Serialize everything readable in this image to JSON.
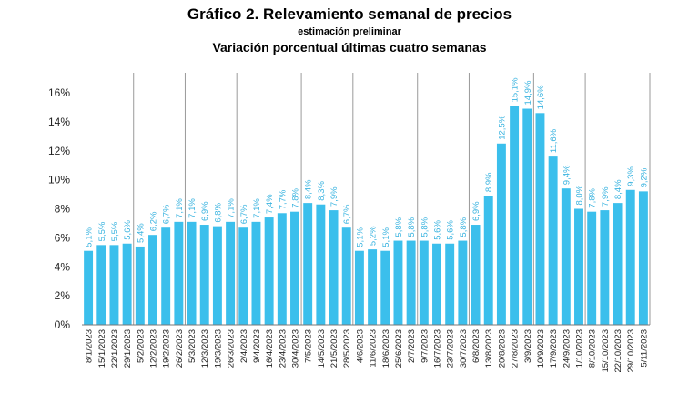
{
  "header": {
    "title": "Gráfico 2. Relevamiento semanal de precios",
    "subtitle": "estimación preliminar",
    "subtitle2": "Variación porcentual últimas cuatro semanas"
  },
  "colors": {
    "bar": "#3bbfec",
    "label": "#3bb4e0",
    "separator": "#9a9a9a",
    "axis": "#777777"
  },
  "chart_data": {
    "type": "bar",
    "title": "Gráfico 2. Relevamiento semanal de precios",
    "subtitle": "Variación porcentual últimas cuatro semanas",
    "ylim": [
      0,
      16
    ],
    "yticks": [
      "0%",
      "2%",
      "4%",
      "6%",
      "8%",
      "10%",
      "12%",
      "14%",
      "16%"
    ],
    "grid": false,
    "categories": [
      "8/1/2023",
      "15/1/2023",
      "22/1/2023",
      "29/1/2023",
      "5/2/2023",
      "12/2/2023",
      "19/2/2023",
      "26/2/2023",
      "5/3/2023",
      "12/3/2023",
      "19/3/2023",
      "26/3/2023",
      "2/4/2023",
      "9/4/2023",
      "16/4/2023",
      "23/4/2023",
      "30/4/2023",
      "7/5/2023",
      "14/5/2023",
      "21/5/2023",
      "28/5/2023",
      "4/6/2023",
      "11/6/2023",
      "18/6/2023",
      "25/6/2023",
      "2/7/2023",
      "9/7/2023",
      "16/7/2023",
      "23/7/2023",
      "30/7/2023",
      "6/8/2023",
      "13/8/2023",
      "20/8/2023",
      "27/8/2023",
      "3/9/2023",
      "10/9/2023",
      "17/9/2023",
      "24/9/2023",
      "1/10/2023",
      "8/10/2023",
      "15/10/2023",
      "22/10/2023",
      "29/10/2023",
      "5/11/2023"
    ],
    "values": [
      5.1,
      5.5,
      5.5,
      5.6,
      5.4,
      6.2,
      6.7,
      7.1,
      7.1,
      6.9,
      6.8,
      7.1,
      6.7,
      7.1,
      7.4,
      7.7,
      7.8,
      8.4,
      8.3,
      7.9,
      6.7,
      5.1,
      5.2,
      5.1,
      5.8,
      5.8,
      5.8,
      5.6,
      5.6,
      5.8,
      6.9,
      8.9,
      12.5,
      15.1,
      14.9,
      14.6,
      11.6,
      9.4,
      8.0,
      7.8,
      7.9,
      8.4,
      9.3,
      9.2
    ],
    "labels": [
      "5,1%",
      "5,5%",
      "5,5%",
      "5,6%",
      "5,4%",
      "6,2%",
      "6,7%",
      "7,1%",
      "7,1%",
      "6,9%",
      "6,8%",
      "7,1%",
      "6,7%",
      "7,1%",
      "7,4%",
      "7,7%",
      "7,8%",
      "8,4%",
      "8,3%",
      "7,9%",
      "6,7%",
      "5,1%",
      "5,2%",
      "5,1%",
      "5,8%",
      "5,8%",
      "5,8%",
      "5,6%",
      "5,6%",
      "5,8%",
      "6,9%",
      "8,9%",
      "12,5%",
      "15,1%",
      "14,9%",
      "14,6%",
      "11,6%",
      "9,4%",
      "8,0%",
      "7,8%",
      "7,9%",
      "8,4%",
      "9,3%",
      "9,2%"
    ],
    "month_separators_after_index": [
      3,
      7,
      11,
      16,
      20,
      25,
      29,
      34,
      38,
      43
    ]
  }
}
